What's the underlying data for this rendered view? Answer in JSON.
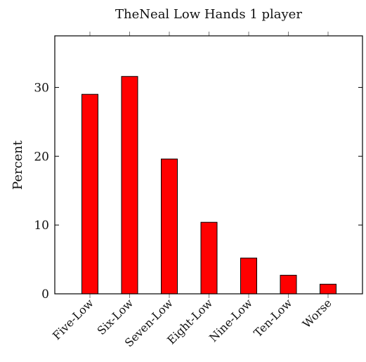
{
  "chart_data": {
    "type": "bar",
    "title": "TheNeal Low Hands 1 player",
    "xlabel": "",
    "ylabel": "Percent",
    "categories": [
      "Five-Low",
      "Six-Low",
      "Seven-Low",
      "Eight-Low",
      "Nine-Low",
      "Ten-Low",
      "Worse"
    ],
    "values": [
      29.0,
      31.6,
      19.6,
      10.4,
      5.2,
      2.7,
      1.4
    ],
    "ylim": [
      0,
      37.5
    ],
    "yticks": [
      0,
      10,
      20,
      30
    ],
    "grid": false,
    "bar_color": "#ff0000",
    "bar_edge_color": "#000000"
  }
}
